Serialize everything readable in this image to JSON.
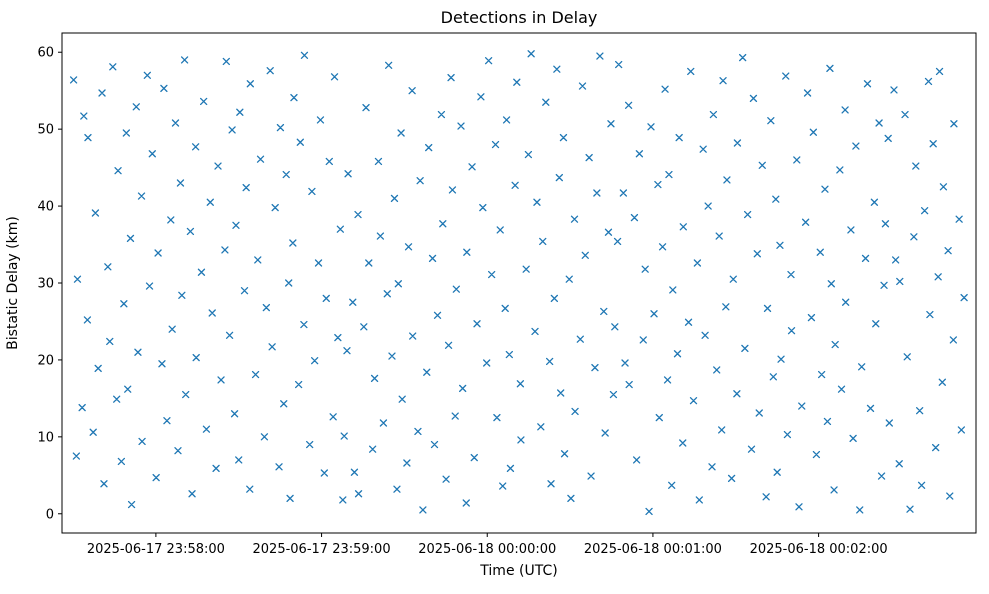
{
  "figure": {
    "title": "Detections in Delay",
    "xlabel": "Time (UTC)",
    "ylabel": "Bistatic Delay (km)"
  },
  "chart_data": {
    "type": "scatter",
    "title": "Detections in Delay",
    "xlabel": "Time (UTC)",
    "ylabel": "Bistatic Delay (km)",
    "marker": "x",
    "marker_color": "#1f77b4",
    "grid": false,
    "legend": "none",
    "x_unit": "seconds relative to 2025-06-17 23:58:00 UTC",
    "xlim_seconds": [
      -34,
      297
    ],
    "ylim": [
      -2.5,
      62.5
    ],
    "x_ticks": [
      {
        "t": 0,
        "label": "2025-06-17 23:58:00"
      },
      {
        "t": 60,
        "label": "2025-06-17 23:59:00"
      },
      {
        "t": 120,
        "label": "2025-06-18 00:00:00"
      },
      {
        "t": 180,
        "label": "2025-06-18 00:01:00"
      },
      {
        "t": 240,
        "label": "2025-06-18 00:02:00"
      }
    ],
    "y_ticks": [
      0,
      10,
      20,
      30,
      40,
      50,
      60
    ],
    "points": [
      [
        -29.8,
        56.4
      ],
      [
        -28.8,
        7.5
      ],
      [
        -28.4,
        30.5
      ],
      [
        -26.7,
        13.8
      ],
      [
        -26.1,
        51.7
      ],
      [
        -24.8,
        25.2
      ],
      [
        -24.6,
        48.9
      ],
      [
        -22.7,
        10.6
      ],
      [
        -21.9,
        39.1
      ],
      [
        -20.9,
        18.9
      ],
      [
        -19.5,
        54.7
      ],
      [
        -18.8,
        3.9
      ],
      [
        -17.4,
        32.1
      ],
      [
        -16.7,
        22.4
      ],
      [
        -15.6,
        58.1
      ],
      [
        -14.2,
        14.9
      ],
      [
        -13.7,
        44.6
      ],
      [
        -12.5,
        6.8
      ],
      [
        -11.6,
        27.3
      ],
      [
        -10.7,
        49.5
      ],
      [
        -10.2,
        16.2
      ],
      [
        -9.2,
        35.8
      ],
      [
        -8.8,
        1.2
      ],
      [
        -7.1,
        52.9
      ],
      [
        -6.5,
        21.0
      ],
      [
        -5.2,
        41.3
      ],
      [
        -5.0,
        9.4
      ],
      [
        -3.1,
        57.0
      ],
      [
        -2.3,
        29.6
      ],
      [
        -1.3,
        46.8
      ],
      [
        0.1,
        4.7
      ],
      [
        0.8,
        33.9
      ],
      [
        2.2,
        19.5
      ],
      [
        2.9,
        55.3
      ],
      [
        4.0,
        12.1
      ],
      [
        5.4,
        38.2
      ],
      [
        5.9,
        24.0
      ],
      [
        7.1,
        50.8
      ],
      [
        8.0,
        8.2
      ],
      [
        8.9,
        43.0
      ],
      [
        9.4,
        28.4
      ],
      [
        10.4,
        59.0
      ],
      [
        10.8,
        15.5
      ],
      [
        12.5,
        36.7
      ],
      [
        13.1,
        2.6
      ],
      [
        14.4,
        47.7
      ],
      [
        14.6,
        20.3
      ],
      [
        16.5,
        31.4
      ],
      [
        17.3,
        53.6
      ],
      [
        18.3,
        11.0
      ],
      [
        19.7,
        40.5
      ],
      [
        20.4,
        26.1
      ],
      [
        21.8,
        5.9
      ],
      [
        22.5,
        45.2
      ],
      [
        23.6,
        17.4
      ],
      [
        25.0,
        34.3
      ],
      [
        25.5,
        58.8
      ],
      [
        26.7,
        23.2
      ],
      [
        27.6,
        49.9
      ],
      [
        28.5,
        13.0
      ],
      [
        29.0,
        37.5
      ],
      [
        30.0,
        7.0
      ],
      [
        30.4,
        52.2
      ],
      [
        32.1,
        29.0
      ],
      [
        32.7,
        42.4
      ],
      [
        34.0,
        3.2
      ],
      [
        34.2,
        55.9
      ],
      [
        36.1,
        18.1
      ],
      [
        36.9,
        33.0
      ],
      [
        37.9,
        46.1
      ],
      [
        39.3,
        10.0
      ],
      [
        40.0,
        26.8
      ],
      [
        41.4,
        57.6
      ],
      [
        42.1,
        21.7
      ],
      [
        43.2,
        39.8
      ],
      [
        44.6,
        6.1
      ],
      [
        45.1,
        50.2
      ],
      [
        46.3,
        14.3
      ],
      [
        47.2,
        44.1
      ],
      [
        48.1,
        30.0
      ],
      [
        48.6,
        2.0
      ],
      [
        49.6,
        35.2
      ],
      [
        50.0,
        54.1
      ],
      [
        51.7,
        16.8
      ],
      [
        52.3,
        48.3
      ],
      [
        53.6,
        24.6
      ],
      [
        53.8,
        59.6
      ],
      [
        55.7,
        9.0
      ],
      [
        56.5,
        41.9
      ],
      [
        57.5,
        19.9
      ],
      [
        58.9,
        32.6
      ],
      [
        59.6,
        51.2
      ],
      [
        61.0,
        5.3
      ],
      [
        61.7,
        28.0
      ],
      [
        62.8,
        45.8
      ],
      [
        64.2,
        12.6
      ],
      [
        64.7,
        56.8
      ],
      [
        65.9,
        22.9
      ],
      [
        66.8,
        37.0
      ],
      [
        67.7,
        1.8
      ],
      [
        68.2,
        10.1
      ],
      [
        69.2,
        21.2
      ],
      [
        69.6,
        44.2
      ],
      [
        71.3,
        27.5
      ],
      [
        71.9,
        5.4
      ],
      [
        73.2,
        38.9
      ],
      [
        73.4,
        2.6
      ],
      [
        75.3,
        24.3
      ],
      [
        76.1,
        52.8
      ],
      [
        77.1,
        32.6
      ],
      [
        78.5,
        8.4
      ],
      [
        79.2,
        17.6
      ],
      [
        80.6,
        45.8
      ],
      [
        81.3,
        36.1
      ],
      [
        82.4,
        11.8
      ],
      [
        83.8,
        28.6
      ],
      [
        84.3,
        58.3
      ],
      [
        85.5,
        20.5
      ],
      [
        86.4,
        41.0
      ],
      [
        87.3,
        3.2
      ],
      [
        87.8,
        29.9
      ],
      [
        88.8,
        49.5
      ],
      [
        89.2,
        14.9
      ],
      [
        90.9,
        6.6
      ],
      [
        91.5,
        34.7
      ],
      [
        92.8,
        55.0
      ],
      [
        93.0,
        23.1
      ],
      [
        94.9,
        10.7
      ],
      [
        95.7,
        43.3
      ],
      [
        96.7,
        0.5
      ],
      [
        98.1,
        18.4
      ],
      [
        98.8,
        47.6
      ],
      [
        100.2,
        33.2
      ],
      [
        100.9,
        9.0
      ],
      [
        102.0,
        25.8
      ],
      [
        103.4,
        51.9
      ],
      [
        103.9,
        37.7
      ],
      [
        105.1,
        4.5
      ],
      [
        106.0,
        21.9
      ],
      [
        106.9,
        56.7
      ],
      [
        107.4,
        42.1
      ],
      [
        108.4,
        12.7
      ],
      [
        108.8,
        29.2
      ],
      [
        110.5,
        50.4
      ],
      [
        111.1,
        16.3
      ],
      [
        112.4,
        1.4
      ],
      [
        112.6,
        34.0
      ],
      [
        114.5,
        45.1
      ],
      [
        115.3,
        7.3
      ],
      [
        116.3,
        24.7
      ],
      [
        117.7,
        54.2
      ],
      [
        118.4,
        39.8
      ],
      [
        119.8,
        19.6
      ],
      [
        120.5,
        58.9
      ],
      [
        121.6,
        31.1
      ],
      [
        123.0,
        48.0
      ],
      [
        123.5,
        12.5
      ],
      [
        124.7,
        36.9
      ],
      [
        125.6,
        3.6
      ],
      [
        126.5,
        26.7
      ],
      [
        127.0,
        51.2
      ],
      [
        128.0,
        20.7
      ],
      [
        128.4,
        5.9
      ],
      [
        130.1,
        42.7
      ],
      [
        130.7,
        56.1
      ],
      [
        132.0,
        16.9
      ],
      [
        132.2,
        9.6
      ],
      [
        134.1,
        31.8
      ],
      [
        134.9,
        46.7
      ],
      [
        135.9,
        59.8
      ],
      [
        137.3,
        23.7
      ],
      [
        138.0,
        40.5
      ],
      [
        139.4,
        11.3
      ],
      [
        140.1,
        35.4
      ],
      [
        141.2,
        53.5
      ],
      [
        142.6,
        19.8
      ],
      [
        143.1,
        3.9
      ],
      [
        144.3,
        28.0
      ],
      [
        145.2,
        57.8
      ],
      [
        146.1,
        43.7
      ],
      [
        146.6,
        15.7
      ],
      [
        147.6,
        48.9
      ],
      [
        148.0,
        7.8
      ],
      [
        149.7,
        30.5
      ],
      [
        150.3,
        2.0
      ],
      [
        151.6,
        38.3
      ],
      [
        151.8,
        13.3
      ],
      [
        153.7,
        22.7
      ],
      [
        154.5,
        55.6
      ],
      [
        155.5,
        33.6
      ],
      [
        156.9,
        46.3
      ],
      [
        157.6,
        4.9
      ],
      [
        159.0,
        19.0
      ],
      [
        159.7,
        41.7
      ],
      [
        160.8,
        59.5
      ],
      [
        162.2,
        26.3
      ],
      [
        162.7,
        10.5
      ],
      [
        163.9,
        36.6
      ],
      [
        164.8,
        50.7
      ],
      [
        165.7,
        15.5
      ],
      [
        166.2,
        24.3
      ],
      [
        167.2,
        35.4
      ],
      [
        167.6,
        58.4
      ],
      [
        169.3,
        41.7
      ],
      [
        169.9,
        19.6
      ],
      [
        171.2,
        53.1
      ],
      [
        171.4,
        16.8
      ],
      [
        173.3,
        38.5
      ],
      [
        174.1,
        7.0
      ],
      [
        175.1,
        46.8
      ],
      [
        176.5,
        22.6
      ],
      [
        177.2,
        31.8
      ],
      [
        178.6,
        0.3
      ],
      [
        179.3,
        50.3
      ],
      [
        180.4,
        26.0
      ],
      [
        181.8,
        42.8
      ],
      [
        182.3,
        12.5
      ],
      [
        183.5,
        34.7
      ],
      [
        184.4,
        55.2
      ],
      [
        185.3,
        17.4
      ],
      [
        185.8,
        44.1
      ],
      [
        186.8,
        3.7
      ],
      [
        187.2,
        29.1
      ],
      [
        188.9,
        20.8
      ],
      [
        189.5,
        48.9
      ],
      [
        190.8,
        9.2
      ],
      [
        191.0,
        37.3
      ],
      [
        192.9,
        24.9
      ],
      [
        193.7,
        57.5
      ],
      [
        194.7,
        14.7
      ],
      [
        196.1,
        32.6
      ],
      [
        196.8,
        1.8
      ],
      [
        198.2,
        47.4
      ],
      [
        198.9,
        23.2
      ],
      [
        200.0,
        40.0
      ],
      [
        201.4,
        6.1
      ],
      [
        201.9,
        51.9
      ],
      [
        203.1,
        18.7
      ],
      [
        204.0,
        36.1
      ],
      [
        204.9,
        10.9
      ],
      [
        205.4,
        56.3
      ],
      [
        206.4,
        26.9
      ],
      [
        206.8,
        43.4
      ],
      [
        208.5,
        4.6
      ],
      [
        209.1,
        30.5
      ],
      [
        210.4,
        15.6
      ],
      [
        210.6,
        48.2
      ],
      [
        212.5,
        59.3
      ],
      [
        213.3,
        21.5
      ],
      [
        214.3,
        38.9
      ],
      [
        215.7,
        8.4
      ],
      [
        216.4,
        54.0
      ],
      [
        217.8,
        33.8
      ],
      [
        218.5,
        13.1
      ],
      [
        219.6,
        45.3
      ],
      [
        221.0,
        2.2
      ],
      [
        221.5,
        26.7
      ],
      [
        222.7,
        51.1
      ],
      [
        223.6,
        17.8
      ],
      [
        224.5,
        40.9
      ],
      [
        225.0,
        5.4
      ],
      [
        226.0,
        34.9
      ],
      [
        226.4,
        20.1
      ],
      [
        228.1,
        56.9
      ],
      [
        228.7,
        10.3
      ],
      [
        230.0,
        31.1
      ],
      [
        230.2,
        23.8
      ],
      [
        232.1,
        46.0
      ],
      [
        232.9,
        0.9
      ],
      [
        233.9,
        14.0
      ],
      [
        235.3,
        37.9
      ],
      [
        236.0,
        54.7
      ],
      [
        237.4,
        25.5
      ],
      [
        238.1,
        49.6
      ],
      [
        239.2,
        7.7
      ],
      [
        240.6,
        34.0
      ],
      [
        241.1,
        18.1
      ],
      [
        242.3,
        42.2
      ],
      [
        243.2,
        12.0
      ],
      [
        244.1,
        57.9
      ],
      [
        244.6,
        29.9
      ],
      [
        245.6,
        3.1
      ],
      [
        246.0,
        22.0
      ],
      [
        247.7,
        44.7
      ],
      [
        248.3,
        16.2
      ],
      [
        249.6,
        52.5
      ],
      [
        249.8,
        27.5
      ],
      [
        251.7,
        36.9
      ],
      [
        252.5,
        9.8
      ],
      [
        253.5,
        47.8
      ],
      [
        254.9,
        0.5
      ],
      [
        255.6,
        19.1
      ],
      [
        257.0,
        33.2
      ],
      [
        257.7,
        55.9
      ],
      [
        258.8,
        13.7
      ],
      [
        260.2,
        40.5
      ],
      [
        260.7,
        24.7
      ],
      [
        261.9,
        50.8
      ],
      [
        262.8,
        4.9
      ],
      [
        263.7,
        29.7
      ],
      [
        264.2,
        37.7
      ],
      [
        265.2,
        48.8
      ],
      [
        265.6,
        11.8
      ],
      [
        267.3,
        55.1
      ],
      [
        267.9,
        33.0
      ],
      [
        269.2,
        6.5
      ],
      [
        269.4,
        30.2
      ],
      [
        271.3,
        51.9
      ],
      [
        272.1,
        20.4
      ],
      [
        273.1,
        0.6
      ],
      [
        274.5,
        36.0
      ],
      [
        275.2,
        45.2
      ],
      [
        276.6,
        13.4
      ],
      [
        277.3,
        3.7
      ],
      [
        278.4,
        39.4
      ],
      [
        279.8,
        56.2
      ],
      [
        280.3,
        25.9
      ],
      [
        281.5,
        48.1
      ],
      [
        282.4,
        8.6
      ],
      [
        283.3,
        30.8
      ],
      [
        283.8,
        57.5
      ],
      [
        284.8,
        17.1
      ],
      [
        285.2,
        42.5
      ],
      [
        286.9,
        34.2
      ],
      [
        287.5,
        2.3
      ],
      [
        288.8,
        22.6
      ],
      [
        289.0,
        50.7
      ],
      [
        290.9,
        38.3
      ],
      [
        291.7,
        10.9
      ],
      [
        292.7,
        28.1
      ]
    ]
  }
}
